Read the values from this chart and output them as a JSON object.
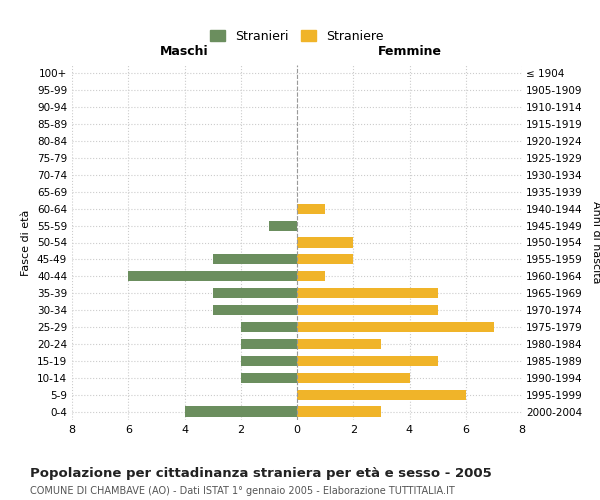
{
  "age_groups": [
    "100+",
    "95-99",
    "90-94",
    "85-89",
    "80-84",
    "75-79",
    "70-74",
    "65-69",
    "60-64",
    "55-59",
    "50-54",
    "45-49",
    "40-44",
    "35-39",
    "30-34",
    "25-29",
    "20-24",
    "15-19",
    "10-14",
    "5-9",
    "0-4"
  ],
  "birth_years": [
    "≤ 1904",
    "1905-1909",
    "1910-1914",
    "1915-1919",
    "1920-1924",
    "1925-1929",
    "1930-1934",
    "1935-1939",
    "1940-1944",
    "1945-1949",
    "1950-1954",
    "1955-1959",
    "1960-1964",
    "1965-1969",
    "1970-1974",
    "1975-1979",
    "1980-1984",
    "1985-1989",
    "1990-1994",
    "1995-1999",
    "2000-2004"
  ],
  "maschi": [
    0,
    0,
    0,
    0,
    0,
    0,
    0,
    0,
    0,
    1,
    0,
    3,
    6,
    3,
    3,
    2,
    2,
    2,
    2,
    0,
    4
  ],
  "femmine": [
    0,
    0,
    0,
    0,
    0,
    0,
    0,
    0,
    1,
    0,
    2,
    2,
    1,
    5,
    5,
    7,
    3,
    5,
    4,
    6,
    3
  ],
  "color_maschi": "#6b8e5e",
  "color_femmine": "#f0b429",
  "background_color": "#ffffff",
  "grid_color": "#cccccc",
  "title": "Popolazione per cittadinanza straniera per età e sesso - 2005",
  "subtitle": "COMUNE DI CHAMBAVE (AO) - Dati ISTAT 1° gennaio 2005 - Elaborazione TUTTITALIA.IT",
  "xlabel_left": "Maschi",
  "xlabel_right": "Femmine",
  "ylabel_left": "Fasce di età",
  "ylabel_right": "Anni di nascita",
  "legend_stranieri": "Stranieri",
  "legend_straniere": "Straniere",
  "xlim": 8,
  "dpi": 100,
  "figsize": [
    6.0,
    5.0
  ]
}
